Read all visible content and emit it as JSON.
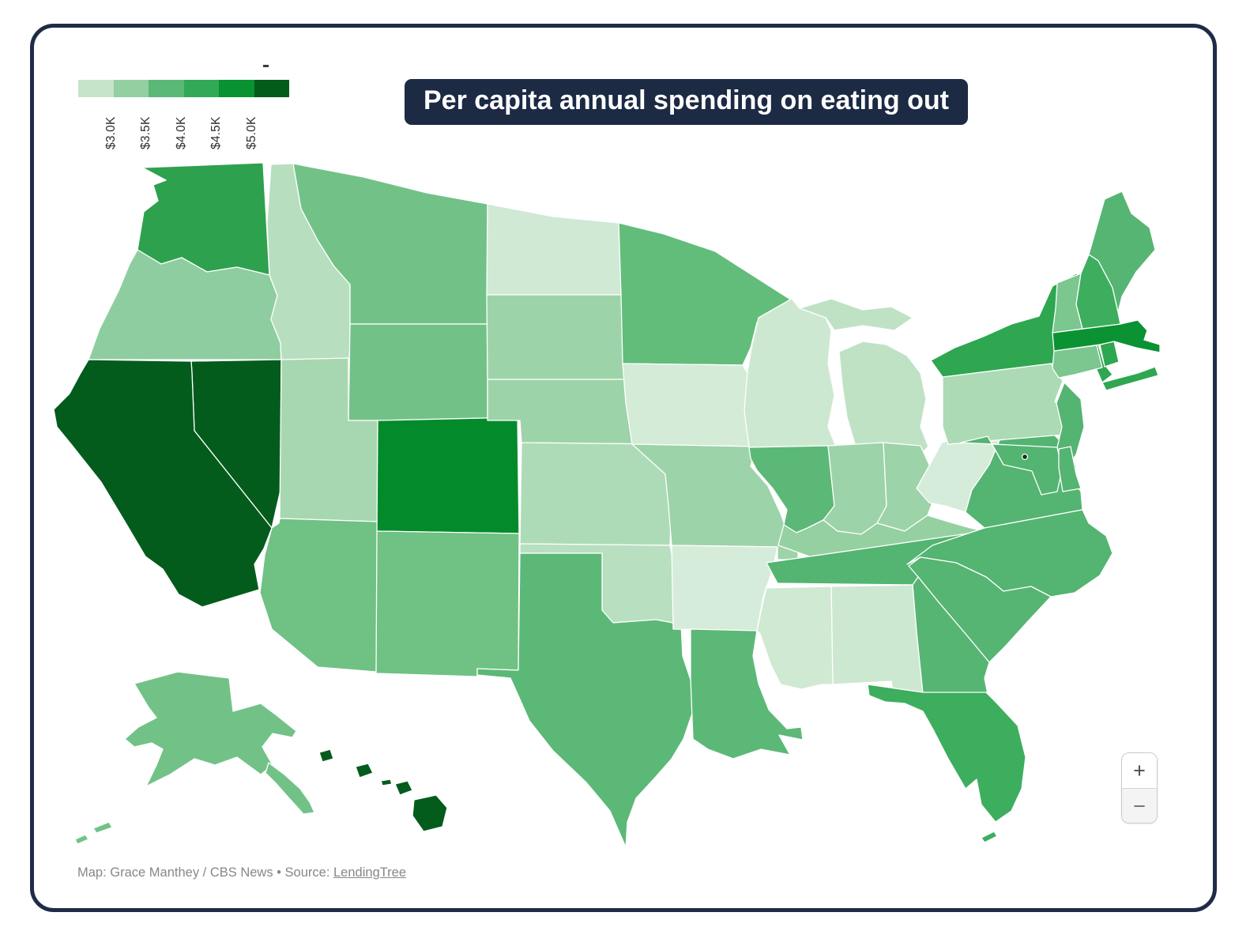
{
  "card": {
    "title": "Per capita annual spending on eating out",
    "attribution": {
      "prefix": "Map: Grace Manthey / CBS News • Source: ",
      "link_label": "LendingTree"
    }
  },
  "legend": {
    "labels": [
      "$3.0K",
      "$3.5K",
      "$4.0K",
      "$4.5K",
      "$5.0K"
    ],
    "colors": [
      "#c5e4c9",
      "#93cfa0",
      "#5cb877",
      "#32a957",
      "#089231",
      "#035c19"
    ]
  },
  "zoom_controls": {
    "zoom_in": "+",
    "zoom_out": "−"
  },
  "map": {
    "stroke_color": "#ffffff",
    "states": [
      {
        "id": "WA",
        "name": "Washington",
        "color": "#2da14e",
        "shapes": [
          "180,212 333,206 341,348 300,338 262,344 230,326 204,334 174,316 182,268 200,254 194,234 210,228"
        ]
      },
      {
        "id": "OR",
        "name": "Oregon",
        "color": "#8ecd9f",
        "shapes": [
          "174,316 204,334 230,326 262,344 300,338 341,348 351,374 343,404 355,434 356,455 112,455 126,416 150,368 164,334"
        ]
      },
      {
        "id": "ID",
        "name": "Idaho",
        "color": "#b7debf",
        "shapes": [
          "343,208 371,207 381,264 402,304 422,336 443,360 443,455 356,455 355,434 343,404 351,374 341,348 338,282"
        ]
      },
      {
        "id": "MT",
        "name": "Montana",
        "color": "#72c287",
        "shapes": [
          "371,207 460,224 540,244 617,258 617,410 443,410 443,360 422,336 402,304 381,264"
        ]
      },
      {
        "id": "WY",
        "name": "Wyoming",
        "color": "#72c287",
        "shapes": [
          "443,410 617,410 617,532 441,532"
        ]
      },
      {
        "id": "NV",
        "name": "Nevada",
        "color": "#045c1c",
        "shapes": [
          "242,457 356,455 355,620 344,668 246,545 243,472"
        ]
      },
      {
        "id": "UT",
        "name": "Utah",
        "color": "#a7d7b0",
        "shapes": [
          "356,455 441,453 441,532 478,532 478,660 354,656"
        ]
      },
      {
        "id": "CA",
        "name": "California",
        "color": "#045c1c",
        "shapes": [
          "112,455 242,457 243,472 246,545 344,668 334,694 322,714 328,746 256,768 226,752 206,720 184,704 158,660 128,610 90,562 72,540 68,518 88,498 102,472"
        ]
      },
      {
        "id": "AZ",
        "name": "Arizona",
        "color": "#6fc184",
        "shapes": [
          "354,656 478,660 476,850 402,844 344,796 329,750 335,702 344,668 353,662"
        ]
      },
      {
        "id": "CO",
        "name": "Colorado",
        "color": "#038b2b",
        "shapes": [
          "478,532 655,528 657,675 477,672"
        ]
      },
      {
        "id": "NM",
        "name": "New Mexico",
        "color": "#6fc184",
        "shapes": [
          "477,672 657,675 656,848 604,846 604,856 476,852"
        ]
      },
      {
        "id": "ND",
        "name": "North Dakota",
        "color": "#cfe9d4",
        "shapes": [
          "617,258 700,274 783,282 786,373 616,373"
        ]
      },
      {
        "id": "SD",
        "name": "South Dakota",
        "color": "#9dd3a8",
        "shapes": [
          "616,373 786,373 800,420 795,480 617,480"
        ]
      },
      {
        "id": "NE",
        "name": "Nebraska",
        "color": "#9dd3a8",
        "shapes": [
          "617,480 795,480 808,505 830,525 845,562 660,560 658,532 617,532"
        ]
      },
      {
        "id": "KS",
        "name": "Kansas",
        "color": "#aedbb7",
        "shapes": [
          "660,560 845,562 852,575 848,690 658,688"
        ]
      },
      {
        "id": "OK",
        "name": "Oklahoma",
        "color": "#b8dfc0",
        "shapes": [
          "658,688 848,690 850,700 862,700 862,790 830,784 776,788 762,772 762,700 658,700"
        ]
      },
      {
        "id": "TX",
        "name": "Texas",
        "color": "#5cb877",
        "shapes": [
          "658,700 762,700 762,772 776,788 830,784 862,790 864,830 874,860 877,900 865,935 850,960 828,985 805,1010 794,1040 792,1072 772,1026 742,990 700,950 670,912 655,878 646,858 604,854 604,846 656,848"
        ]
      },
      {
        "id": "MN",
        "name": "Minnesota",
        "color": "#62bd7a",
        "shapes": [
          "783,282 840,296 905,318 1002,380 958,408 950,440 940,462 788,460 786,373"
        ]
      },
      {
        "id": "IA",
        "name": "Iowa",
        "color": "#d3ebd7",
        "shapes": [
          "788,460 940,462 952,482 958,520 950,552 956,565 800,562 792,510"
        ]
      },
      {
        "id": "MO",
        "name": "Missouri",
        "color": "#9dd3a8",
        "shapes": [
          "800,562 956,565 950,590 972,615 988,650 996,672 988,690 1010,690 1010,708 984,708 984,692 850,690 846,640 842,600"
        ]
      },
      {
        "id": "AR",
        "name": "Arkansas",
        "color": "#d6ecda",
        "shapes": [
          "850,690 984,692 978,720 966,755 958,798 852,796"
        ]
      },
      {
        "id": "LA",
        "name": "Louisiana",
        "color": "#5cb877",
        "shapes": [
          "874,796 958,798 953,830 960,865 973,898 996,922 1014,920 1016,936 986,930 1000,955 963,948 928,960 896,948 877,935 874,858"
        ]
      },
      {
        "id": "WI",
        "name": "Wisconsin",
        "color": "#cde8d1",
        "shapes": [
          "960,402 1002,378 1012,390 1045,402 1052,418 1048,460 1056,500 1048,540 1058,565 948,566 942,520 946,470 952,435"
        ]
      },
      {
        "id": "MI",
        "name": "Michigan",
        "color": "#bfe2c5",
        "shapes": [
          "1012,390 1052,378 1092,392 1128,388 1155,402 1132,418 1092,412 1056,418 1045,402",
          "1062,445 1092,432 1122,436 1148,450 1165,472 1172,505 1165,540 1175,565 1158,582 1108,585 1082,562 1072,528 1066,488"
        ]
      },
      {
        "id": "IL",
        "name": "Illinois",
        "color": "#5cb877",
        "shapes": [
          "948,566 1048,564 1053,612 1056,640 1042,658 1022,668 1008,674 992,664 996,645 978,618 958,595 950,580"
        ]
      },
      {
        "id": "IN",
        "name": "Indiana",
        "color": "#9dd3a8",
        "shapes": [
          "1048,564 1118,560 1122,640 1110,662 1090,676 1060,672 1042,658 1056,640 1053,612"
        ]
      },
      {
        "id": "OH",
        "name": "Ohio",
        "color": "#9dd3a8",
        "shapes": [
          "1118,560 1165,564 1188,614 1174,652 1145,672 1110,662 1122,640"
        ]
      },
      {
        "id": "KY",
        "name": "Kentucky",
        "color": "#95d0a1",
        "shapes": [
          "992,664 1008,674 1022,668 1042,658 1060,672 1090,676 1110,662 1145,672 1174,652 1200,660 1228,668 1246,672 1238,686 1130,698 1030,706 985,690"
        ]
      },
      {
        "id": "TN",
        "name": "Tennessee",
        "color": "#54b471",
        "shapes": [
          "970,712 1246,672 1250,682 1158,740 984,738"
        ]
      },
      {
        "id": "WV",
        "name": "West Virginia",
        "color": "#d6ecda",
        "shapes": [
          "1160,618 1180,582 1192,560 1198,558 1198,520 1212,518 1216,560 1250,552 1270,545 1252,588 1230,620 1222,648 1196,640 1176,636"
        ]
      },
      {
        "id": "VA",
        "name": "Virginia",
        "color": "#54b471",
        "shapes": [
          "1270,545 1302,522 1332,548 1354,570 1362,590 1356,604 1368,622 1370,645 1246,668 1222,648 1230,620 1252,588"
        ]
      },
      {
        "id": "NC",
        "name": "North Carolina",
        "color": "#54b471",
        "shapes": [
          "1246,668 1370,645 1378,662 1400,678 1408,700 1392,728 1360,750 1330,755 1305,742 1270,748 1248,730 1210,712 1165,705 1148,714 1180,690"
        ]
      },
      {
        "id": "SC",
        "name": "South Carolina",
        "color": "#56b573",
        "shapes": [
          "1165,705 1210,712 1248,730 1270,748 1305,742 1330,755 1302,785 1272,818 1252,838 1222,802 1188,762 1162,730 1150,716"
        ]
      },
      {
        "id": "GA",
        "name": "Georgia",
        "color": "#56b573",
        "shapes": [
          "1155,740 1162,730 1188,762 1222,802 1252,838 1246,858 1250,878 1168,878 1160,800"
        ]
      },
      {
        "id": "AL",
        "name": "Alabama",
        "color": "#cde8d1",
        "shapes": [
          "1052,742 1155,740 1160,800 1168,878 1130,874 1128,862 1054,866"
        ]
      },
      {
        "id": "MS",
        "name": "Mississippi",
        "color": "#cfe9d3",
        "shapes": [
          "970,744 1052,742 1054,866 1040,866 1014,872 988,866 975,840 962,802 958,798 966,760"
        ]
      },
      {
        "id": "FL",
        "name": "Florida",
        "color": "#3cae5e",
        "shapes": [
          "1098,866 1168,876 1248,876 1260,888 1288,918 1298,958 1293,998 1280,1026 1260,1040 1242,1018 1236,986 1222,998 1200,960 1182,925 1168,900 1145,890 1120,888 1100,880",
          "1242,1060 1258,1052 1262,1058 1246,1066"
        ]
      },
      {
        "id": "PA",
        "name": "Pennsylvania",
        "color": "#abdab4",
        "shapes": [
          "1193,477 1330,460 1345,482 1335,508 1352,528 1346,550 1200,562 1193,540"
        ]
      },
      {
        "id": "NY",
        "name": "New York",
        "color": "#2ea750",
        "shapes": [
          "1178,456 1208,440 1244,426 1280,410 1315,400 1332,362 1362,346 1380,354 1380,408 1390,436 1397,460 1408,474 1395,484 1388,468 1330,460 1193,477",
          "1395,484 1440,472 1462,464 1466,475 1420,488 1400,494"
        ]
      },
      {
        "id": "NJ",
        "name": "New Jersey",
        "color": "#54b471",
        "shapes": [
          "1347,484 1368,505 1372,540 1362,575 1348,595 1336,575 1344,540 1337,510"
        ]
      },
      {
        "id": "MD",
        "name": "Maryland",
        "color": "#54b471",
        "shapes": [
          "1216,560 1338,566 1344,594 1338,622 1318,626 1306,596 1270,588 1250,552"
        ]
      },
      {
        "id": "DE",
        "name": "Delaware",
        "color": "#54b471",
        "shapes": [
          "1340,568 1355,565 1362,600 1368,618 1345,622 1340,592"
        ]
      },
      {
        "id": "CT",
        "name": "Connecticut",
        "color": "#7cc68f",
        "shapes": [
          "1334,444 1388,437 1395,465 1360,474 1340,478 1332,466"
        ]
      },
      {
        "id": "RI",
        "name": "Rhode Island",
        "color": "#2ea750",
        "shapes": [
          "1392,436 1410,432 1416,458 1398,464"
        ]
      },
      {
        "id": "MA",
        "name": "Massachusetts",
        "color": "#0b9232",
        "shapes": [
          "1332,421 1418,410 1440,405 1452,418 1448,430 1468,436 1468,446 1438,440 1410,432 1392,436 1334,444"
        ]
      },
      {
        "id": "VT",
        "name": "Vermont",
        "color": "#7cc68f",
        "shapes": [
          "1338,358 1368,346 1362,385 1370,416 1332,421 1336,390"
        ]
      },
      {
        "id": "NH",
        "name": "New Hampshire",
        "color": "#3cae5e",
        "shapes": [
          "1368,346 1378,322 1390,330 1408,364 1415,395 1418,410 1370,416 1362,385"
        ]
      },
      {
        "id": "ME",
        "name": "Maine",
        "color": "#56b573",
        "shapes": [
          "1378,322 1398,252 1420,242 1432,270 1455,288 1462,316 1438,344 1420,375 1415,395 1408,364 1390,330"
        ]
      },
      {
        "id": "AK",
        "name": "Alaska",
        "color": "#72c287",
        "shapes": [
          "170,865 225,850 290,858 295,900 330,890 350,905 375,925 370,933 345,928 332,945 345,968 330,980 300,958 272,968 246,960 215,980 185,995 198,968 206,948 192,940 170,945 158,935 175,920 198,908 188,895",
          "340,965 360,980 380,998 392,1015 398,1028 384,1030 366,1010 350,992 336,978",
          "118,1048 138,1040 142,1047 122,1054",
          "95,1062 108,1056 112,1062 98,1068"
        ]
      },
      {
        "id": "HI",
        "name": "Hawaii",
        "color": "#045c1c",
        "shapes": [
          "404,952 418,948 422,960 408,964",
          "450,970 466,966 472,978 455,984",
          "482,988 494,986 496,992 484,994",
          "500,992 516,988 522,1000 506,1006",
          "524,1012 552,1006 566,1022 560,1046 536,1052 522,1032"
        ]
      },
      {
        "id": "DC",
        "name": "District of Columbia",
        "color": "#0b3b17",
        "circle": [
          1297,
          578,
          3.5
        ]
      }
    ]
  }
}
